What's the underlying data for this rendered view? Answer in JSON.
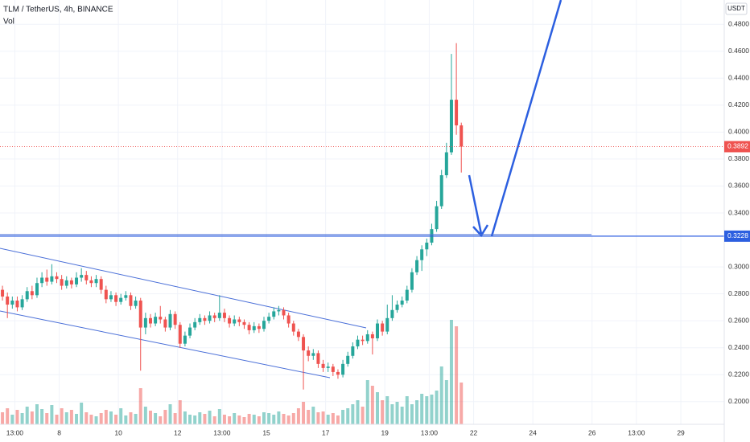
{
  "header": {
    "title": "TLM / TetherUS, 4h, BINANCE",
    "indicator": "Vol",
    "currency": "USDT"
  },
  "chart_data": {
    "type": "candlestick",
    "open": [
      0.283,
      0.278,
      0.272,
      0.275,
      0.27,
      0.276,
      0.282,
      0.279,
      0.288,
      0.292,
      0.289,
      0.293,
      0.291,
      0.286,
      0.29,
      0.287,
      0.292,
      0.294,
      0.29,
      0.288,
      0.291,
      0.283,
      0.276,
      0.279,
      0.274,
      0.277,
      0.279,
      0.271,
      0.275,
      0.255,
      0.262,
      0.258,
      0.263,
      0.261,
      0.255,
      0.265,
      0.257,
      0.243,
      0.249,
      0.255,
      0.259,
      0.262,
      0.26,
      0.264,
      0.262,
      0.266,
      0.262,
      0.258,
      0.261,
      0.259,
      0.257,
      0.253,
      0.256,
      0.254,
      0.26,
      0.263,
      0.267,
      0.268,
      0.264,
      0.258,
      0.252,
      0.248,
      0.238,
      0.234,
      0.236,
      0.228,
      0.225,
      0.226,
      0.222,
      0.22,
      0.228,
      0.234,
      0.241,
      0.246,
      0.245,
      0.25,
      0.247,
      0.258,
      0.252,
      0.262,
      0.268,
      0.272,
      0.275,
      0.283,
      0.296,
      0.305,
      0.313,
      0.318,
      0.328,
      0.345,
      0.368,
      0.385,
      0.424,
      0.405
    ],
    "high": [
      0.286,
      0.281,
      0.278,
      0.278,
      0.279,
      0.285,
      0.286,
      0.292,
      0.296,
      0.298,
      0.302,
      0.296,
      0.294,
      0.293,
      0.292,
      0.296,
      0.299,
      0.297,
      0.293,
      0.294,
      0.293,
      0.286,
      0.282,
      0.281,
      0.28,
      0.282,
      0.281,
      0.278,
      0.277,
      0.266,
      0.265,
      0.266,
      0.271,
      0.263,
      0.268,
      0.267,
      0.259,
      0.252,
      0.258,
      0.262,
      0.265,
      0.264,
      0.267,
      0.266,
      0.279,
      0.269,
      0.264,
      0.264,
      0.263,
      0.261,
      0.259,
      0.259,
      0.258,
      0.263,
      0.266,
      0.27,
      0.271,
      0.27,
      0.266,
      0.26,
      0.254,
      0.25,
      0.241,
      0.239,
      0.238,
      0.231,
      0.229,
      0.228,
      0.224,
      0.231,
      0.237,
      0.244,
      0.249,
      0.249,
      0.253,
      0.252,
      0.261,
      0.26,
      0.272,
      0.279,
      0.275,
      0.278,
      0.286,
      0.299,
      0.308,
      0.316,
      0.321,
      0.332,
      0.349,
      0.372,
      0.392,
      0.458,
      0.466,
      0.407
    ],
    "low": [
      0.275,
      0.262,
      0.269,
      0.267,
      0.268,
      0.274,
      0.276,
      0.277,
      0.285,
      0.286,
      0.287,
      0.288,
      0.283,
      0.284,
      0.284,
      0.285,
      0.289,
      0.287,
      0.285,
      0.285,
      0.28,
      0.273,
      0.274,
      0.271,
      0.272,
      0.275,
      0.268,
      0.269,
      0.223,
      0.25,
      0.255,
      0.256,
      0.258,
      0.252,
      0.253,
      0.254,
      0.24,
      0.241,
      0.247,
      0.253,
      0.257,
      0.257,
      0.258,
      0.259,
      0.26,
      0.259,
      0.255,
      0.256,
      0.256,
      0.254,
      0.25,
      0.251,
      0.251,
      0.252,
      0.258,
      0.261,
      0.264,
      0.261,
      0.255,
      0.249,
      0.245,
      0.209,
      0.23,
      0.231,
      0.225,
      0.222,
      0.222,
      0.219,
      0.217,
      0.218,
      0.226,
      0.232,
      0.239,
      0.242,
      0.243,
      0.235,
      0.245,
      0.249,
      0.25,
      0.26,
      0.266,
      0.27,
      0.273,
      0.281,
      0.294,
      0.297,
      0.308,
      0.316,
      0.326,
      0.343,
      0.366,
      0.383,
      0.398,
      0.37
    ],
    "close": [
      0.278,
      0.272,
      0.275,
      0.27,
      0.276,
      0.282,
      0.279,
      0.288,
      0.292,
      0.289,
      0.293,
      0.291,
      0.286,
      0.29,
      0.287,
      0.292,
      0.294,
      0.29,
      0.288,
      0.291,
      0.283,
      0.276,
      0.279,
      0.274,
      0.277,
      0.279,
      0.271,
      0.275,
      0.255,
      0.262,
      0.258,
      0.263,
      0.261,
      0.255,
      0.265,
      0.257,
      0.243,
      0.249,
      0.255,
      0.259,
      0.262,
      0.26,
      0.264,
      0.262,
      0.266,
      0.262,
      0.258,
      0.261,
      0.259,
      0.257,
      0.253,
      0.256,
      0.254,
      0.26,
      0.263,
      0.267,
      0.268,
      0.264,
      0.258,
      0.252,
      0.248,
      0.238,
      0.234,
      0.236,
      0.228,
      0.225,
      0.226,
      0.222,
      0.22,
      0.228,
      0.234,
      0.241,
      0.246,
      0.245,
      0.25,
      0.247,
      0.258,
      0.252,
      0.262,
      0.268,
      0.272,
      0.275,
      0.283,
      0.296,
      0.305,
      0.313,
      0.318,
      0.328,
      0.345,
      0.368,
      0.385,
      0.424,
      0.405,
      0.3892
    ],
    "volume": [
      15,
      20,
      12,
      18,
      14,
      22,
      16,
      25,
      19,
      14,
      24,
      12,
      20,
      15,
      18,
      13,
      27,
      15,
      12,
      10,
      14,
      18,
      16,
      12,
      20,
      11,
      15,
      13,
      45,
      22,
      17,
      14,
      10,
      18,
      25,
      14,
      30,
      16,
      12,
      11,
      15,
      13,
      17,
      10,
      19,
      12,
      10,
      14,
      11,
      9,
      13,
      12,
      10,
      15,
      14,
      12,
      16,
      13,
      11,
      14,
      20,
      28,
      18,
      22,
      15,
      16,
      12,
      14,
      11,
      18,
      20,
      25,
      30,
      22,
      55,
      48,
      40,
      30,
      35,
      25,
      28,
      22,
      35,
      25,
      30,
      38,
      35,
      37,
      42,
      72,
      55,
      130,
      122,
      52
    ],
    "up_color": "#26a69a",
    "down_color": "#ef5350",
    "xlim": [
      -0.5,
      146.3
    ],
    "xticks": [
      {
        "value": 2.5,
        "label": "13:00"
      },
      {
        "value": 11.5,
        "label": "8"
      },
      {
        "value": 23.5,
        "label": "10"
      },
      {
        "value": 35.5,
        "label": "12"
      },
      {
        "value": 44.5,
        "label": "13:00"
      },
      {
        "value": 53.5,
        "label": "15"
      },
      {
        "value": 65.5,
        "label": "17"
      },
      {
        "value": 77.5,
        "label": "19"
      },
      {
        "value": 86.5,
        "label": "13:00"
      },
      {
        "value": 95.5,
        "label": "22"
      },
      {
        "value": 107.5,
        "label": "24"
      },
      {
        "value": 119.5,
        "label": "26"
      },
      {
        "value": 128.5,
        "label": "13:00"
      },
      {
        "value": 137.5,
        "label": "29"
      }
    ],
    "ylim": [
      0.182,
      0.498
    ],
    "yticks": [
      {
        "value": 0.48,
        "label": "0.4800"
      },
      {
        "value": 0.46,
        "label": "0.4600"
      },
      {
        "value": 0.44,
        "label": "0.4400"
      },
      {
        "value": 0.42,
        "label": "0.4200"
      },
      {
        "value": 0.4,
        "label": "0.4000"
      },
      {
        "value": 0.38,
        "label": "0.3800"
      },
      {
        "value": 0.36,
        "label": "0.3600"
      },
      {
        "value": 0.34,
        "label": "0.3400"
      },
      {
        "value": 0.3,
        "label": "0.3000"
      },
      {
        "value": 0.28,
        "label": "0.2800"
      },
      {
        "value": 0.26,
        "label": "0.2600"
      },
      {
        "value": 0.24,
        "label": "0.2400"
      },
      {
        "value": 0.22,
        "label": "0.2200"
      },
      {
        "value": 0.2,
        "label": "0.2000"
      }
    ],
    "last_price": 0.3892,
    "support_level": 0.3228,
    "grid": true
  }
}
